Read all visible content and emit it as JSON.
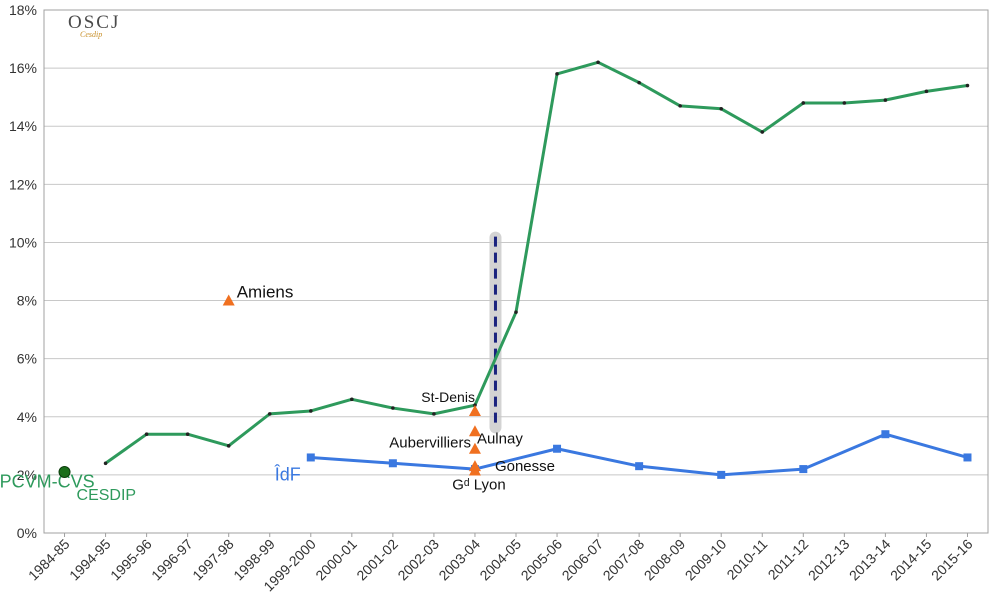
{
  "logo": {
    "main": "OSCJ",
    "sub": "Cesdip"
  },
  "chart_data": {
    "type": "line",
    "title": "",
    "xlabel": "",
    "ylabel": "",
    "ylim": [
      0,
      18
    ],
    "y_ticks": [
      "0%",
      "2%",
      "4%",
      "6%",
      "8%",
      "10%",
      "12%",
      "14%",
      "16%",
      "18%"
    ],
    "grid": true,
    "categories": [
      "1984-85",
      "1994-95",
      "1995-96",
      "1996-97",
      "1997-98",
      "1998-99",
      "1999-2000",
      "2000-01",
      "2001-02",
      "2002-03",
      "2003-04",
      "2004-05",
      "2005-06",
      "2006-07",
      "2007-08",
      "2008-09",
      "2009-10",
      "2010-11",
      "2011-12",
      "2012-13",
      "2013-14",
      "2014-15",
      "2015-16"
    ],
    "series": [
      {
        "name": "EPCVM-CVS",
        "color": "#2e9a5c",
        "values": [
          null,
          2.4,
          3.4,
          3.4,
          3.0,
          4.1,
          4.2,
          4.6,
          4.3,
          4.1,
          4.4,
          7.6,
          15.8,
          16.2,
          15.5,
          14.7,
          14.6,
          13.8,
          14.8,
          14.8,
          14.9,
          15.2,
          15.4
        ]
      },
      {
        "name": "ÎdF",
        "color": "#3a78e0",
        "values": [
          null,
          null,
          null,
          null,
          null,
          null,
          2.6,
          null,
          2.4,
          null,
          2.2,
          null,
          2.9,
          null,
          2.3,
          null,
          2.0,
          null,
          2.2,
          null,
          3.4,
          null,
          2.6
        ]
      }
    ],
    "points": [
      {
        "label": "CESDIP",
        "x": "1984-85",
        "y": 2.1,
        "marker": "circle",
        "color": "#1a6e1a",
        "label_color": "#2e9a5c"
      },
      {
        "label": "Amiens",
        "x": "1997-98",
        "y": 8.0,
        "marker": "triangle",
        "color": "#f07020",
        "label_color": "#111111"
      },
      {
        "label": "St-Denis",
        "x": "2003-04",
        "y": 4.2,
        "marker": "triangle",
        "color": "#f07020",
        "label_color": "#111111"
      },
      {
        "label": "Aulnay",
        "x": "2003-04",
        "y": 3.5,
        "marker": "triangle",
        "color": "#f07020",
        "label_color": "#111111"
      },
      {
        "label": "Aubervilliers",
        "x": "2003-04",
        "y": 2.9,
        "marker": "triangle",
        "color": "#f07020",
        "label_color": "#111111"
      },
      {
        "label": "Gonesse",
        "x": "2003-04",
        "y": 2.3,
        "marker": "triangle",
        "color": "#f07020",
        "label_color": "#111111"
      },
      {
        "label": "Gᵈ Lyon",
        "x": "2003-04",
        "y": 2.15,
        "marker": "triangle",
        "color": "#f07020",
        "label_color": "#111111"
      }
    ],
    "reference_line": {
      "between": [
        "2003-04",
        "2004-05"
      ],
      "from": 3.6,
      "to": 10.2,
      "style": "dashed",
      "color": "#1a237e"
    }
  }
}
